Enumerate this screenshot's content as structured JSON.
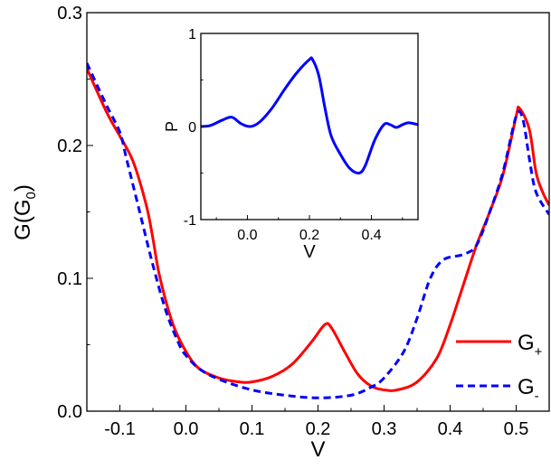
{
  "chart_data": [
    {
      "type": "line",
      "xlabel": "V",
      "ylabel": "G(G",
      "ylabel_sub": "0",
      "ylabel_end": ")",
      "xlim": [
        -0.15,
        0.55
      ],
      "ylim": [
        0,
        0.3
      ],
      "xticks": [
        "-0.1",
        "0.0",
        "0.1",
        "0.2",
        "0.3",
        "0.4",
        "0.5"
      ],
      "xtick_values": [
        -0.1,
        0,
        0.1,
        0.2,
        0.3,
        0.4,
        0.5
      ],
      "yticks": [
        "0.0",
        "0.1",
        "0.2",
        "0.3"
      ],
      "ytick_values": [
        0,
        0.1,
        0.2,
        0.3
      ],
      "grid": false,
      "legend_placement": "bottom-right",
      "series": [
        {
          "name": "G",
          "name_sub": "+",
          "color": "#ff0000",
          "style": "solid",
          "x": [
            -0.15,
            -0.12,
            -0.1,
            -0.08,
            -0.06,
            -0.05,
            -0.04,
            -0.02,
            0,
            0.02,
            0.05,
            0.08,
            0.1,
            0.13,
            0.16,
            0.19,
            0.21,
            0.22,
            0.24,
            0.26,
            0.28,
            0.3,
            0.32,
            0.35,
            0.38,
            0.4,
            0.42,
            0.44,
            0.46,
            0.48,
            0.5,
            0.505,
            0.52,
            0.53,
            0.54,
            0.55
          ],
          "y": [
            0.258,
            0.225,
            0.207,
            0.188,
            0.155,
            0.13,
            0.102,
            0.066,
            0.045,
            0.032,
            0.025,
            0.022,
            0.022,
            0.026,
            0.035,
            0.052,
            0.065,
            0.063,
            0.045,
            0.028,
            0.019,
            0.016,
            0.016,
            0.022,
            0.04,
            0.065,
            0.095,
            0.125,
            0.15,
            0.178,
            0.222,
            0.228,
            0.212,
            0.18,
            0.165,
            0.155
          ]
        },
        {
          "name": "G",
          "name_sub": "-",
          "color": "#0000ff",
          "style": "dashed",
          "x": [
            -0.15,
            -0.12,
            -0.1,
            -0.09,
            -0.07,
            -0.05,
            -0.03,
            -0.01,
            0,
            0.02,
            0.05,
            0.1,
            0.15,
            0.2,
            0.25,
            0.28,
            0.3,
            0.33,
            0.35,
            0.37,
            0.39,
            0.42,
            0.44,
            0.46,
            0.48,
            0.5,
            0.51,
            0.52,
            0.53,
            0.55
          ],
          "y": [
            0.262,
            0.23,
            0.21,
            0.19,
            0.15,
            0.11,
            0.075,
            0.05,
            0.042,
            0.032,
            0.024,
            0.016,
            0.012,
            0.01,
            0.012,
            0.018,
            0.025,
            0.045,
            0.07,
            0.1,
            0.114,
            0.118,
            0.125,
            0.15,
            0.18,
            0.222,
            0.22,
            0.19,
            0.165,
            0.148
          ]
        }
      ]
    },
    {
      "type": "line",
      "xlabel": "V",
      "ylabel": "P",
      "xlim": [
        -0.15,
        0.55
      ],
      "ylim": [
        -1,
        1
      ],
      "xticks": [
        "0.0",
        "0.2",
        "0.4"
      ],
      "xtick_values": [
        0,
        0.2,
        0.4
      ],
      "yticks": [
        "-1",
        "0",
        "1"
      ],
      "ytick_values": [
        -1,
        0,
        1
      ],
      "grid": false,
      "series": [
        {
          "color": "#0000ff",
          "style": "solid",
          "x": [
            -0.15,
            -0.12,
            -0.08,
            -0.05,
            -0.02,
            0.01,
            0.04,
            0.08,
            0.12,
            0.16,
            0.2,
            0.21,
            0.23,
            0.25,
            0.27,
            0.3,
            0.33,
            0.36,
            0.38,
            0.41,
            0.44,
            0.46,
            0.48,
            0.5,
            0.52,
            0.55
          ],
          "y": [
            0,
            0.01,
            0.07,
            0.1,
            0.03,
            0,
            0.05,
            0.2,
            0.4,
            0.58,
            0.72,
            0.72,
            0.55,
            0.2,
            -0.1,
            -0.3,
            -0.45,
            -0.5,
            -0.42,
            -0.15,
            0.02,
            0.02,
            -0.01,
            0.02,
            0.04,
            0.02
          ]
        }
      ]
    }
  ]
}
